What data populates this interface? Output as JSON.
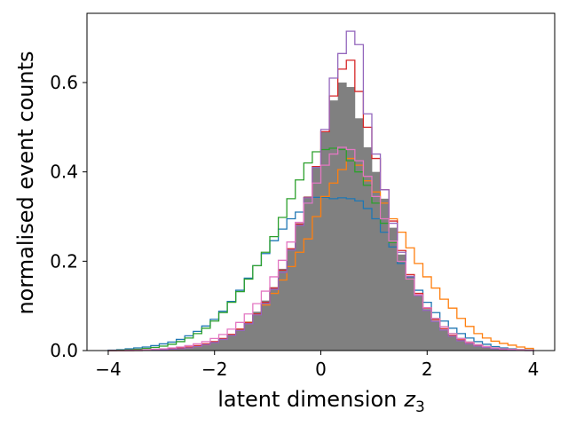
{
  "chart_data": {
    "type": "histogram",
    "xlabel": "latent dimension",
    "xlabel_symbol": "z",
    "xlabel_subscript": "3",
    "ylabel": "normalised event counts",
    "xlim": [
      -4.4,
      4.4
    ],
    "ylim": [
      0.0,
      0.755
    ],
    "x_ticks": [
      -4,
      -2,
      0,
      2,
      4
    ],
    "x_tick_labels": [
      "−4",
      "−2",
      "0",
      "2",
      "4"
    ],
    "y_ticks": [
      0.0,
      0.2,
      0.4,
      0.6
    ],
    "y_tick_labels": [
      "0.0",
      "0.2",
      "0.4",
      "0.6"
    ],
    "grid": false,
    "bin_edges_start": -4.0,
    "bin_width": 0.16,
    "series": [
      {
        "style": "filled",
        "color": "#808080",
        "values": [
          0.0,
          0.0,
          0.0,
          0.001,
          0.002,
          0.002,
          0.003,
          0.004,
          0.006,
          0.008,
          0.011,
          0.015,
          0.019,
          0.026,
          0.036,
          0.049,
          0.065,
          0.087,
          0.112,
          0.142,
          0.183,
          0.228,
          0.285,
          0.345,
          0.41,
          0.49,
          0.56,
          0.6,
          0.59,
          0.52,
          0.455,
          0.4,
          0.34,
          0.275,
          0.215,
          0.165,
          0.125,
          0.093,
          0.067,
          0.047,
          0.032,
          0.022,
          0.015,
          0.01,
          0.006,
          0.004,
          0.003,
          0.002,
          0.001,
          0.001
        ]
      },
      {
        "style": "step",
        "color": "#1f77b4",
        "values": [
          0.001,
          0.002,
          0.004,
          0.006,
          0.008,
          0.011,
          0.015,
          0.019,
          0.025,
          0.033,
          0.043,
          0.055,
          0.07,
          0.088,
          0.11,
          0.135,
          0.162,
          0.19,
          0.217,
          0.246,
          0.272,
          0.295,
          0.31,
          0.33,
          0.343,
          0.343,
          0.34,
          0.342,
          0.34,
          0.335,
          0.318,
          0.295,
          0.265,
          0.232,
          0.195,
          0.165,
          0.135,
          0.108,
          0.085,
          0.066,
          0.05,
          0.038,
          0.028,
          0.02,
          0.014,
          0.009,
          0.006,
          0.004,
          0.002,
          0.001
        ]
      },
      {
        "style": "step",
        "color": "#ff7f0e",
        "values": [
          0.0,
          0.0,
          0.0,
          0.0,
          0.001,
          0.001,
          0.002,
          0.003,
          0.004,
          0.006,
          0.009,
          0.013,
          0.019,
          0.026,
          0.036,
          0.048,
          0.063,
          0.081,
          0.102,
          0.128,
          0.158,
          0.188,
          0.22,
          0.25,
          0.3,
          0.345,
          0.375,
          0.405,
          0.43,
          0.415,
          0.38,
          0.355,
          0.33,
          0.295,
          0.265,
          0.23,
          0.195,
          0.165,
          0.14,
          0.115,
          0.095,
          0.072,
          0.054,
          0.038,
          0.028,
          0.021,
          0.016,
          0.012,
          0.008,
          0.005
        ]
      },
      {
        "style": "step",
        "color": "#2ca02c",
        "values": [
          0.0,
          0.001,
          0.002,
          0.003,
          0.005,
          0.007,
          0.01,
          0.014,
          0.02,
          0.028,
          0.038,
          0.05,
          0.066,
          0.085,
          0.108,
          0.132,
          0.16,
          0.19,
          0.22,
          0.255,
          0.298,
          0.34,
          0.382,
          0.42,
          0.445,
          0.45,
          0.453,
          0.45,
          0.425,
          0.4,
          0.37,
          0.33,
          0.285,
          0.242,
          0.2,
          0.16,
          0.125,
          0.096,
          0.072,
          0.053,
          0.038,
          0.027,
          0.019,
          0.013,
          0.009,
          0.006,
          0.004,
          0.003,
          0.002,
          0.001
        ]
      },
      {
        "style": "step",
        "color": "#d62728",
        "values": [
          0.0,
          0.0,
          0.0,
          0.001,
          0.001,
          0.002,
          0.003,
          0.004,
          0.006,
          0.008,
          0.011,
          0.015,
          0.02,
          0.027,
          0.036,
          0.048,
          0.062,
          0.082,
          0.108,
          0.14,
          0.18,
          0.228,
          0.283,
          0.343,
          0.412,
          0.49,
          0.57,
          0.63,
          0.65,
          0.58,
          0.5,
          0.43,
          0.36,
          0.29,
          0.224,
          0.17,
          0.128,
          0.095,
          0.069,
          0.049,
          0.034,
          0.024,
          0.016,
          0.011,
          0.007,
          0.005,
          0.003,
          0.002,
          0.001,
          0.001
        ]
      },
      {
        "style": "step",
        "color": "#9467bd",
        "values": [
          0.0,
          0.0,
          0.0,
          0.0,
          0.001,
          0.001,
          0.002,
          0.003,
          0.004,
          0.006,
          0.009,
          0.013,
          0.018,
          0.025,
          0.034,
          0.045,
          0.06,
          0.08,
          0.105,
          0.137,
          0.175,
          0.225,
          0.28,
          0.342,
          0.41,
          0.495,
          0.61,
          0.665,
          0.715,
          0.685,
          0.53,
          0.44,
          0.36,
          0.285,
          0.22,
          0.166,
          0.123,
          0.09,
          0.065,
          0.046,
          0.032,
          0.022,
          0.015,
          0.01,
          0.007,
          0.004,
          0.003,
          0.002,
          0.001,
          0.0
        ]
      },
      {
        "style": "step",
        "color": "#e377c2",
        "values": [
          0.0,
          0.0,
          0.001,
          0.001,
          0.002,
          0.003,
          0.004,
          0.006,
          0.008,
          0.011,
          0.015,
          0.02,
          0.027,
          0.036,
          0.048,
          0.063,
          0.082,
          0.105,
          0.133,
          0.165,
          0.202,
          0.243,
          0.287,
          0.33,
          0.375,
          0.415,
          0.44,
          0.455,
          0.45,
          0.425,
          0.39,
          0.345,
          0.295,
          0.245,
          0.2,
          0.16,
          0.125,
          0.096,
          0.072,
          0.053,
          0.038,
          0.027,
          0.019,
          0.013,
          0.009,
          0.006,
          0.004,
          0.003,
          0.002,
          0.001
        ]
      }
    ]
  }
}
